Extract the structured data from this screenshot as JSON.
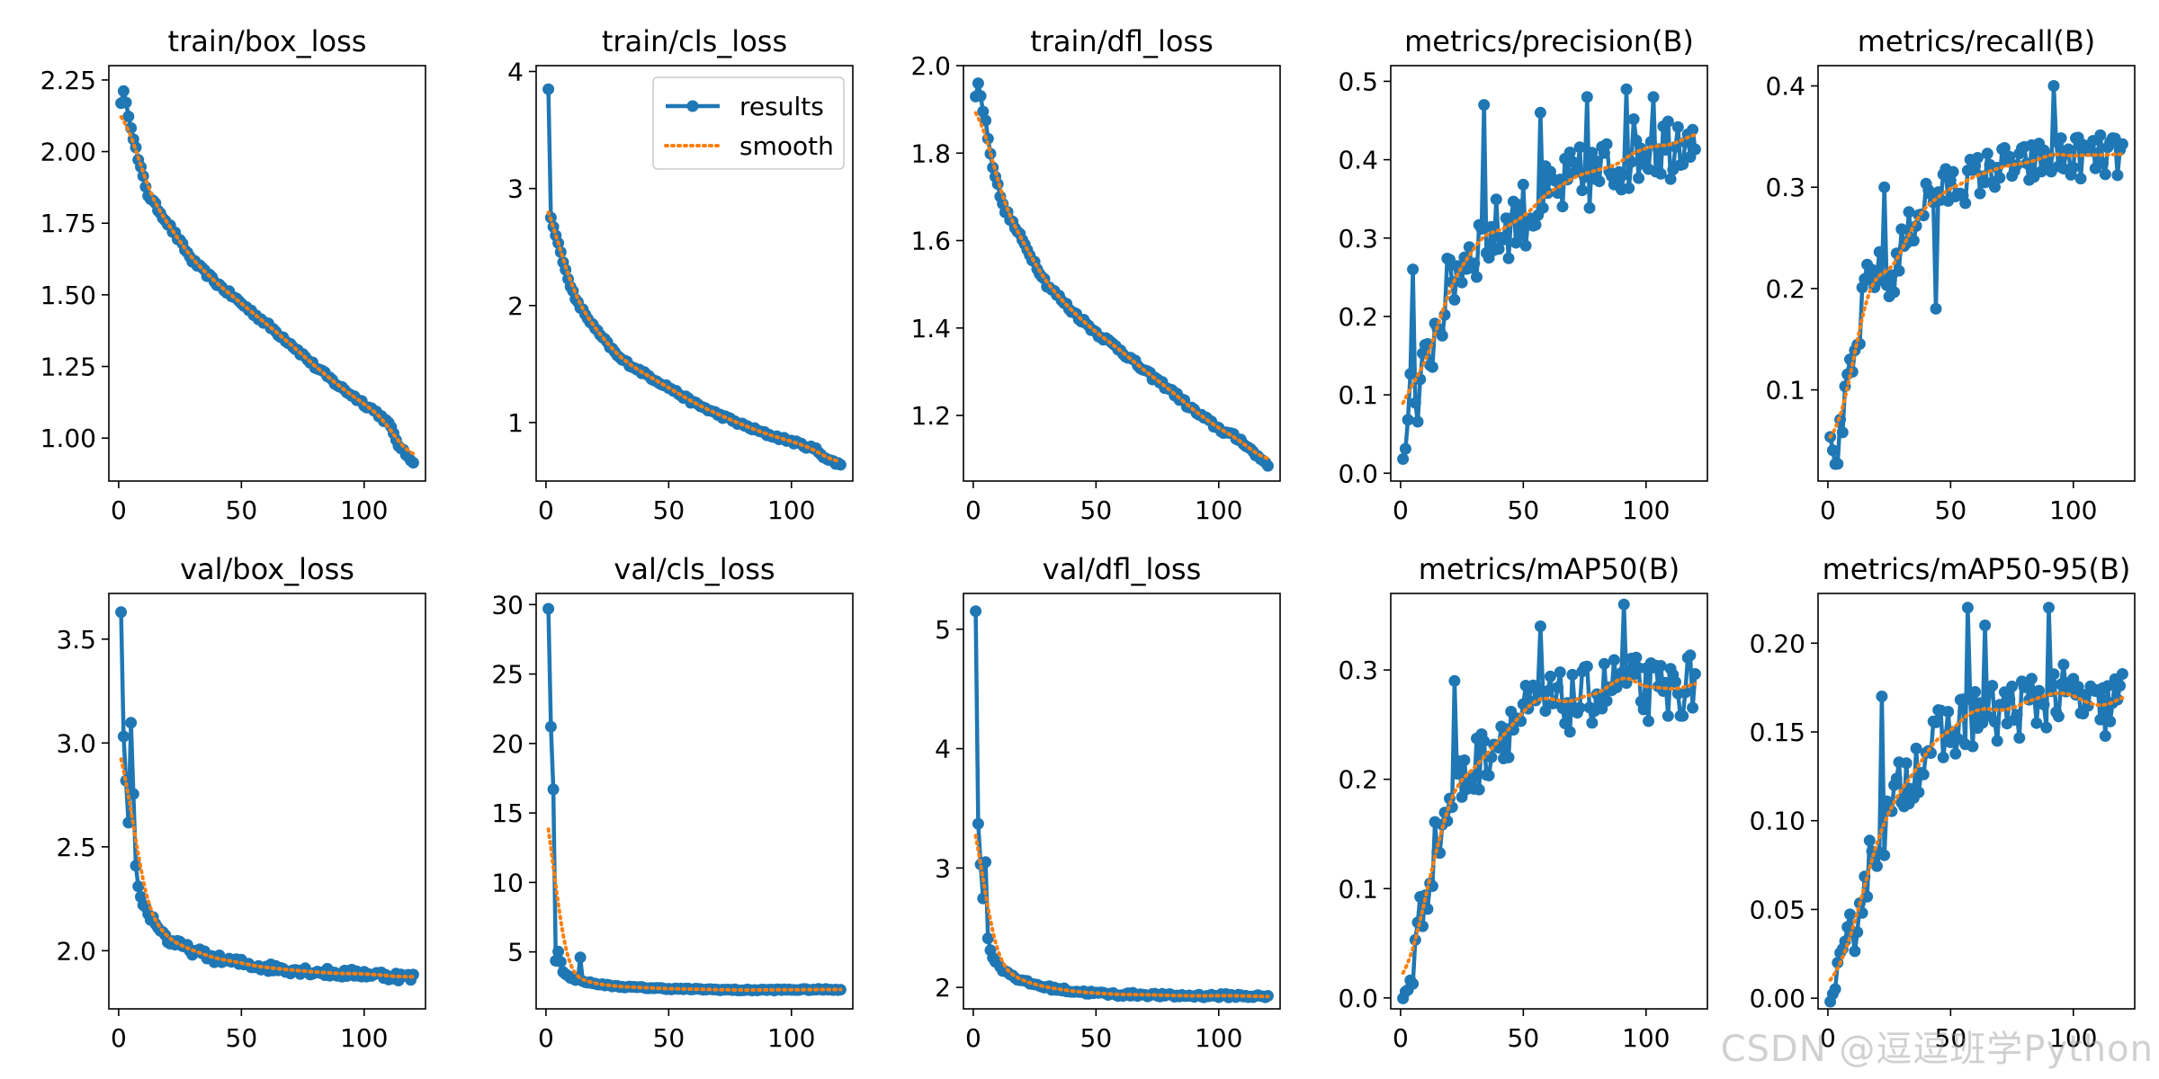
{
  "watermark": "CSDN @逗逗班学Python",
  "colors": {
    "results": "#1f77b4",
    "smooth": "#ff7f0e",
    "axis": "#000000"
  },
  "legend": {
    "results": "results",
    "smooth": "smooth"
  },
  "chart_data": [
    {
      "type": "line",
      "title": "train/box_loss",
      "xlim": [
        -4,
        125
      ],
      "ylim": [
        0.85,
        2.3
      ],
      "yticks": [
        1.0,
        1.25,
        1.5,
        1.75,
        2.0,
        2.25
      ],
      "ytick_decimals": 2,
      "xticks": [
        0,
        50,
        100
      ],
      "legend": false,
      "knots": [
        [
          1,
          2.17
        ],
        [
          2,
          2.21
        ],
        [
          3,
          2.17
        ],
        [
          5,
          2.09
        ],
        [
          8,
          1.97
        ],
        [
          12,
          1.85
        ],
        [
          20,
          1.75
        ],
        [
          30,
          1.62
        ],
        [
          40,
          1.54
        ],
        [
          50,
          1.47
        ],
        [
          60,
          1.4
        ],
        [
          70,
          1.33
        ],
        [
          80,
          1.25
        ],
        [
          90,
          1.18
        ],
        [
          100,
          1.12
        ],
        [
          105,
          1.09
        ],
        [
          110,
          1.05
        ],
        [
          115,
          0.96
        ],
        [
          120,
          0.92
        ]
      ],
      "noise": 0.008,
      "outliers": []
    },
    {
      "type": "line",
      "title": "train/cls_loss",
      "xlim": [
        -4,
        125
      ],
      "ylim": [
        0.5,
        4.05
      ],
      "yticks": [
        1,
        2,
        3,
        4
      ],
      "ytick_decimals": 0,
      "xticks": [
        0,
        50,
        100
      ],
      "legend": true,
      "legend_loc": "upper right",
      "knots": [
        [
          1,
          3.85
        ],
        [
          2,
          2.75
        ],
        [
          4,
          2.6
        ],
        [
          6,
          2.45
        ],
        [
          8,
          2.3
        ],
        [
          12,
          2.05
        ],
        [
          20,
          1.8
        ],
        [
          30,
          1.55
        ],
        [
          40,
          1.42
        ],
        [
          50,
          1.3
        ],
        [
          60,
          1.17
        ],
        [
          70,
          1.07
        ],
        [
          80,
          0.98
        ],
        [
          90,
          0.9
        ],
        [
          100,
          0.84
        ],
        [
          110,
          0.77
        ],
        [
          115,
          0.68
        ],
        [
          120,
          0.64
        ]
      ],
      "noise": 0.015,
      "outliers": []
    },
    {
      "type": "line",
      "title": "train/dfl_loss",
      "xlim": [
        -4,
        125
      ],
      "ylim": [
        1.05,
        2.0
      ],
      "yticks": [
        1.2,
        1.4,
        1.6,
        1.8,
        2.0
      ],
      "ytick_decimals": 1,
      "xticks": [
        0,
        50,
        100
      ],
      "legend": false,
      "knots": [
        [
          1,
          1.93
        ],
        [
          2,
          1.96
        ],
        [
          3,
          1.93
        ],
        [
          5,
          1.87
        ],
        [
          8,
          1.77
        ],
        [
          12,
          1.68
        ],
        [
          20,
          1.6
        ],
        [
          30,
          1.5
        ],
        [
          40,
          1.44
        ],
        [
          50,
          1.39
        ],
        [
          60,
          1.35
        ],
        [
          70,
          1.3
        ],
        [
          80,
          1.26
        ],
        [
          90,
          1.21
        ],
        [
          100,
          1.17
        ],
        [
          110,
          1.14
        ],
        [
          115,
          1.11
        ],
        [
          120,
          1.09
        ]
      ],
      "noise": 0.006,
      "outliers": []
    },
    {
      "type": "line",
      "title": "metrics/precision(B)",
      "xlim": [
        -4,
        125
      ],
      "ylim": [
        -0.01,
        0.52
      ],
      "yticks": [
        0.0,
        0.1,
        0.2,
        0.3,
        0.4,
        0.5
      ],
      "ytick_decimals": 1,
      "xticks": [
        0,
        50,
        100
      ],
      "legend": false,
      "knots": [
        [
          1,
          0.01
        ],
        [
          2,
          0.03
        ],
        [
          4,
          0.12
        ],
        [
          5,
          0.3
        ],
        [
          6,
          0.06
        ],
        [
          8,
          0.1
        ],
        [
          12,
          0.16
        ],
        [
          16,
          0.2
        ],
        [
          20,
          0.24
        ],
        [
          25,
          0.27
        ],
        [
          30,
          0.29
        ],
        [
          40,
          0.31
        ],
        [
          50,
          0.33
        ],
        [
          60,
          0.35
        ],
        [
          70,
          0.37
        ],
        [
          80,
          0.38
        ],
        [
          90,
          0.4
        ],
        [
          100,
          0.42
        ],
        [
          110,
          0.42
        ],
        [
          120,
          0.45
        ]
      ],
      "noise": 0.045,
      "outliers": [
        [
          34,
          0.47
        ],
        [
          57,
          0.46
        ],
        [
          76,
          0.48
        ],
        [
          92,
          0.49
        ],
        [
          103,
          0.48
        ]
      ]
    },
    {
      "type": "line",
      "title": "metrics/recall(B)",
      "xlim": [
        -4,
        125
      ],
      "ylim": [
        0.01,
        0.42
      ],
      "yticks": [
        0.1,
        0.2,
        0.3,
        0.4
      ],
      "ytick_decimals": 1,
      "xticks": [
        0,
        50,
        100
      ],
      "legend": false,
      "knots": [
        [
          1,
          0.05
        ],
        [
          3,
          0.03
        ],
        [
          5,
          0.05
        ],
        [
          8,
          0.1
        ],
        [
          12,
          0.14
        ],
        [
          15,
          0.2
        ],
        [
          20,
          0.22
        ],
        [
          25,
          0.2
        ],
        [
          30,
          0.24
        ],
        [
          40,
          0.29
        ],
        [
          50,
          0.3
        ],
        [
          60,
          0.31
        ],
        [
          70,
          0.32
        ],
        [
          80,
          0.32
        ],
        [
          90,
          0.33
        ],
        [
          100,
          0.33
        ],
        [
          110,
          0.33
        ],
        [
          120,
          0.33
        ]
      ],
      "noise": 0.022,
      "outliers": [
        [
          23,
          0.3
        ],
        [
          44,
          0.18
        ],
        [
          92,
          0.4
        ]
      ]
    },
    {
      "type": "line",
      "title": "val/box_loss",
      "xlim": [
        -4,
        125
      ],
      "ylim": [
        1.72,
        3.72
      ],
      "yticks": [
        2.0,
        2.5,
        3.0,
        3.5
      ],
      "ytick_decimals": 1,
      "xticks": [
        0,
        50,
        100
      ],
      "legend": false,
      "knots": [
        [
          1,
          3.63
        ],
        [
          2,
          3.03
        ],
        [
          4,
          2.6
        ],
        [
          5,
          3.08
        ],
        [
          7,
          2.4
        ],
        [
          9,
          2.25
        ],
        [
          12,
          2.18
        ],
        [
          16,
          2.12
        ],
        [
          20,
          2.05
        ],
        [
          30,
          2.0
        ],
        [
          40,
          1.96
        ],
        [
          50,
          1.94
        ],
        [
          60,
          1.92
        ],
        [
          70,
          1.91
        ],
        [
          80,
          1.9
        ],
        [
          90,
          1.89
        ],
        [
          100,
          1.89
        ],
        [
          110,
          1.88
        ],
        [
          120,
          1.87
        ]
      ],
      "noise": 0.02,
      "outliers": []
    },
    {
      "type": "line",
      "title": "val/cls_loss",
      "xlim": [
        -4,
        125
      ],
      "ylim": [
        0.9,
        30.8
      ],
      "yticks": [
        5,
        10,
        15,
        20,
        25,
        30
      ],
      "ytick_decimals": 0,
      "xticks": [
        0,
        50,
        100
      ],
      "legend": false,
      "knots": [
        [
          1,
          29.7
        ],
        [
          2,
          21.2
        ],
        [
          3,
          16.7
        ],
        [
          4,
          4.4
        ],
        [
          5,
          5.0
        ],
        [
          7,
          3.6
        ],
        [
          10,
          3.1
        ],
        [
          15,
          2.9
        ],
        [
          20,
          2.7
        ],
        [
          30,
          2.5
        ],
        [
          50,
          2.35
        ],
        [
          80,
          2.25
        ],
        [
          120,
          2.3
        ]
      ],
      "noise": 0.05,
      "outliers": [
        [
          14,
          4.6
        ]
      ]
    },
    {
      "type": "line",
      "title": "val/dfl_loss",
      "xlim": [
        -4,
        125
      ],
      "ylim": [
        1.82,
        5.3
      ],
      "yticks": [
        2,
        3,
        4,
        5
      ],
      "ytick_decimals": 0,
      "xticks": [
        0,
        50,
        100
      ],
      "legend": false,
      "knots": [
        [
          1,
          5.15
        ],
        [
          2,
          3.37
        ],
        [
          3,
          3.03
        ],
        [
          4,
          2.76
        ],
        [
          5,
          3.05
        ],
        [
          6,
          2.4
        ],
        [
          8,
          2.25
        ],
        [
          12,
          2.15
        ],
        [
          20,
          2.05
        ],
        [
          30,
          2.0
        ],
        [
          40,
          1.97
        ],
        [
          50,
          1.95
        ],
        [
          60,
          1.94
        ],
        [
          70,
          1.94
        ],
        [
          80,
          1.93
        ],
        [
          90,
          1.93
        ],
        [
          100,
          1.93
        ],
        [
          110,
          1.93
        ],
        [
          120,
          1.92
        ]
      ],
      "noise": 0.015,
      "outliers": []
    },
    {
      "type": "line",
      "title": "metrics/mAP50(B)",
      "xlim": [
        -4,
        125
      ],
      "ylim": [
        -0.01,
        0.37
      ],
      "yticks": [
        0.0,
        0.1,
        0.2,
        0.3
      ],
      "ytick_decimals": 1,
      "xticks": [
        0,
        50,
        100
      ],
      "legend": false,
      "knots": [
        [
          1,
          0.0
        ],
        [
          3,
          0.01
        ],
        [
          5,
          0.03
        ],
        [
          8,
          0.07
        ],
        [
          12,
          0.12
        ],
        [
          16,
          0.15
        ],
        [
          20,
          0.18
        ],
        [
          25,
          0.2
        ],
        [
          30,
          0.21
        ],
        [
          40,
          0.24
        ],
        [
          50,
          0.26
        ],
        [
          60,
          0.27
        ],
        [
          70,
          0.27
        ],
        [
          80,
          0.28
        ],
        [
          90,
          0.29
        ],
        [
          100,
          0.28
        ],
        [
          110,
          0.28
        ],
        [
          120,
          0.29
        ]
      ],
      "noise": 0.028,
      "outliers": [
        [
          22,
          0.29
        ],
        [
          57,
          0.34
        ],
        [
          91,
          0.36
        ]
      ]
    },
    {
      "type": "line",
      "title": "metrics/mAP50-95(B)",
      "xlim": [
        -4,
        125
      ],
      "ylim": [
        -0.006,
        0.228
      ],
      "yticks": [
        0.0,
        0.05,
        0.1,
        0.15,
        0.2
      ],
      "ytick_decimals": 2,
      "xticks": [
        0,
        50,
        100
      ],
      "legend": false,
      "knots": [
        [
          1,
          0.0
        ],
        [
          3,
          0.003
        ],
        [
          5,
          0.008
        ],
        [
          8,
          0.025
        ],
        [
          12,
          0.05
        ],
        [
          16,
          0.07
        ],
        [
          20,
          0.09
        ],
        [
          25,
          0.1
        ],
        [
          30,
          0.12
        ],
        [
          40,
          0.14
        ],
        [
          50,
          0.15
        ],
        [
          60,
          0.16
        ],
        [
          70,
          0.16
        ],
        [
          80,
          0.165
        ],
        [
          90,
          0.17
        ],
        [
          100,
          0.17
        ],
        [
          110,
          0.16
        ],
        [
          120,
          0.17
        ]
      ],
      "noise": 0.018,
      "outliers": [
        [
          22,
          0.17
        ],
        [
          57,
          0.22
        ],
        [
          64,
          0.21
        ],
        [
          90,
          0.22
        ]
      ]
    }
  ]
}
